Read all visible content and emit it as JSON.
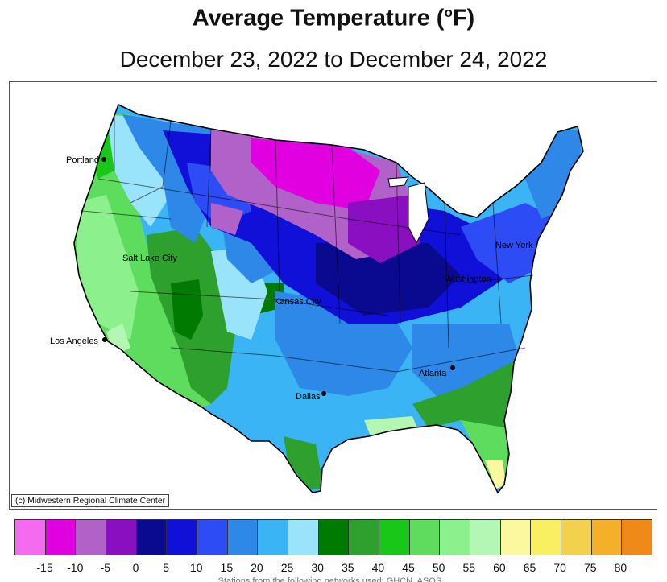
{
  "title": "Average Temperature (",
  "title_sup": "o",
  "title_unit": "F)",
  "subtitle": "December 23, 2022 to December 24, 2022",
  "credit": "(c) Midwestern Regional Climate Center",
  "cities": {
    "portland": "Portland",
    "salt_lake_city": "Salt Lake City",
    "los_angeles": "Los Angeles",
    "kansas_city": "Kansas City",
    "dallas": "Dallas",
    "atlanta": "Atlanta",
    "new_york": "New York",
    "washington": "Washington"
  },
  "legend": {
    "colors": [
      "#f56bf0",
      "#e000e0",
      "#b062c8",
      "#8a0fc0",
      "#0a0a90",
      "#1010d8",
      "#2d4cf5",
      "#2e88e8",
      "#3ab4f5",
      "#9ae4fb",
      "#007a00",
      "#2ea02e",
      "#18c818",
      "#5edc5e",
      "#8cf08c",
      "#b4f6b4",
      "#fcf8a0",
      "#f8f060",
      "#f2d24c",
      "#f5b02a",
      "#ef8a18"
    ],
    "ticks": [
      "-15",
      "-10",
      "-5",
      "0",
      "5",
      "10",
      "15",
      "20",
      "25",
      "30",
      "35",
      "40",
      "45",
      "50",
      "55",
      "60",
      "65",
      "70",
      "75",
      "80"
    ]
  },
  "footnote": "Stations from the following networks used: GHCN, ASOS..."
}
